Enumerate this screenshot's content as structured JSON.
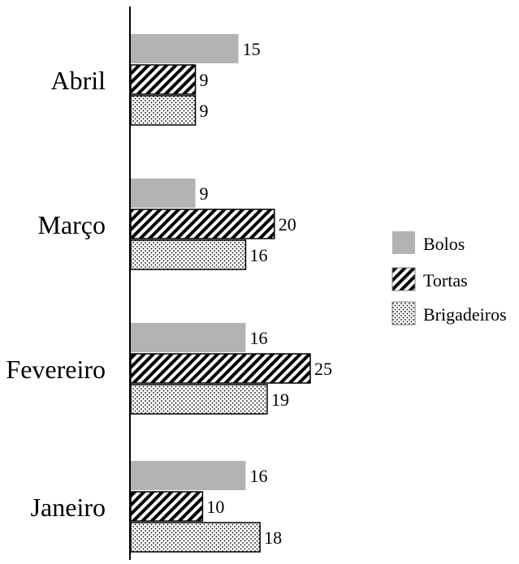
{
  "chart_data": {
    "type": "bar",
    "orientation": "horizontal",
    "categories": [
      "Abril",
      "Março",
      "Fevereiro",
      "Janeiro"
    ],
    "series": [
      {
        "name": "Bolos",
        "values": [
          15,
          9,
          16,
          16
        ],
        "color": "#b3b3b3",
        "pattern": "solid"
      },
      {
        "name": "Tortas",
        "values": [
          9,
          20,
          25,
          10
        ],
        "color": "#000000",
        "pattern": "diagonal-stripes"
      },
      {
        "name": "Brigadeiros",
        "values": [
          9,
          16,
          19,
          18
        ],
        "color": "#ffffff",
        "pattern": "dots"
      }
    ],
    "xlim": [
      0,
      25
    ],
    "axis_visible": false,
    "grid": false,
    "legend_position": "right"
  }
}
